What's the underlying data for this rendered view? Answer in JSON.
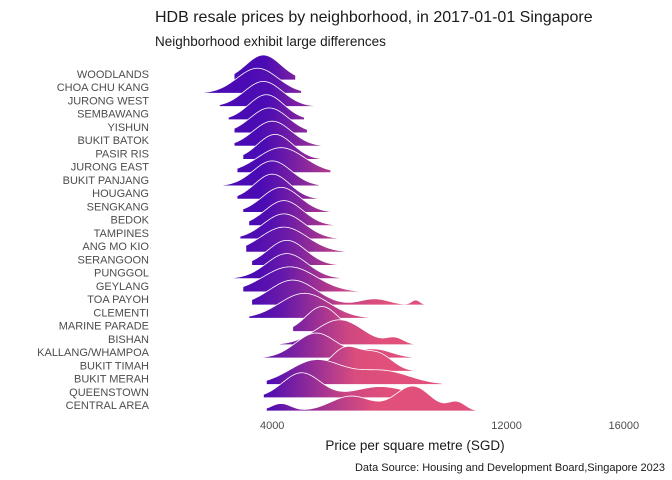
{
  "chart_data": {
    "type": "ridgeline",
    "title": "HDB resale prices by neighborhood, in 2017-01-01 Singapore",
    "subtitle": "Neighborhood exhibit large differences",
    "xlabel": "Price per square metre (SGD)",
    "caption": "Data Source: Housing and Development Board,Singapore 2023",
    "xlim": [
      0,
      16000
    ],
    "xticks": [
      4000,
      12000,
      16000
    ],
    "grid": false,
    "legend": "none",
    "color_scale": {
      "low": "#4b0bb4",
      "high": "#e1507a",
      "domain": [
        3800,
        7000
      ]
    },
    "ridges": [
      {
        "name": "WOODLANDS",
        "min": 2700,
        "max": 4800,
        "peaks": [
          [
            3700,
            600,
            1
          ]
        ]
      },
      {
        "name": "CHOA CHU KANG",
        "min": 1500,
        "max": 5000,
        "peaks": [
          [
            3500,
            700,
            1
          ]
        ]
      },
      {
        "name": "JURONG WEST",
        "min": 2200,
        "max": 5600,
        "peaks": [
          [
            3700,
            650,
            1
          ]
        ]
      },
      {
        "name": "SEMBAWANG",
        "min": 2500,
        "max": 5100,
        "peaks": [
          [
            3800,
            600,
            1
          ]
        ]
      },
      {
        "name": "YISHUN",
        "min": 2700,
        "max": 5200,
        "peaks": [
          [
            3900,
            650,
            1
          ]
        ]
      },
      {
        "name": "BUKIT BATOK",
        "min": 2700,
        "max": 6000,
        "peaks": [
          [
            4000,
            650,
            1
          ]
        ]
      },
      {
        "name": "PASIR RIS",
        "min": 3000,
        "max": 5700,
        "peaks": [
          [
            4100,
            600,
            1
          ]
        ]
      },
      {
        "name": "JURONG EAST",
        "min": 2800,
        "max": 6000,
        "peaks": [
          [
            4300,
            800,
            1
          ]
        ]
      },
      {
        "name": "BUKIT PANJANG",
        "min": 1700,
        "max": 5600,
        "peaks": [
          [
            4000,
            650,
            1
          ]
        ]
      },
      {
        "name": "HOUGANG",
        "min": 2800,
        "max": 5900,
        "peaks": [
          [
            4000,
            600,
            1
          ]
        ]
      },
      {
        "name": "SENGKANG",
        "min": 3000,
        "max": 6100,
        "peaks": [
          [
            4300,
            650,
            1
          ]
        ]
      },
      {
        "name": "BEDOK",
        "min": 3200,
        "max": 6200,
        "peaks": [
          [
            4400,
            650,
            1
          ]
        ]
      },
      {
        "name": "TAMPINES",
        "min": 2900,
        "max": 7200,
        "peaks": [
          [
            4400,
            700,
            1
          ]
        ]
      },
      {
        "name": "ANG MO KIO",
        "min": 3100,
        "max": 8600,
        "peaks": [
          [
            4400,
            800,
            1
          ]
        ]
      },
      {
        "name": "SERANGOON",
        "min": 3300,
        "max": 6500,
        "peaks": [
          [
            4500,
            650,
            1
          ]
        ]
      },
      {
        "name": "PUNGGOL",
        "min": 2400,
        "max": 6800,
        "peaks": [
          [
            4500,
            700,
            1
          ]
        ]
      },
      {
        "name": "GEYLANG",
        "min": 3000,
        "max": 8200,
        "peaks": [
          [
            4600,
            900,
            1
          ]
        ]
      },
      {
        "name": "TOA PAYOH",
        "min": 3300,
        "max": 9500,
        "peaks": [
          [
            4700,
            800,
            1
          ],
          [
            7500,
            500,
            0.25
          ],
          [
            8900,
            150,
            0.2
          ]
        ]
      },
      {
        "name": "CLEMENTI",
        "min": 3200,
        "max": 7600,
        "peaks": [
          [
            5100,
            850,
            1
          ]
        ]
      },
      {
        "name": "MARINE PARADE",
        "min": 4700,
        "max": 7200,
        "peaks": [
          [
            5700,
            550,
            1
          ]
        ]
      },
      {
        "name": "BISHAN",
        "min": 4200,
        "max": 9000,
        "peaks": [
          [
            6300,
            800,
            1
          ],
          [
            8200,
            300,
            0.25
          ]
        ]
      },
      {
        "name": "KALLANG/WHAMPOA",
        "min": 3200,
        "max": 10000,
        "peaks": [
          [
            5500,
            700,
            1
          ],
          [
            7500,
            600,
            0.35
          ]
        ]
      },
      {
        "name": "BUKIT TIMAH",
        "min": 4800,
        "max": 9000,
        "peaks": [
          [
            6500,
            500,
            1
          ],
          [
            7600,
            500,
            0.75
          ]
        ]
      },
      {
        "name": "BUKIT MERAH",
        "min": 3800,
        "max": 9800,
        "peaks": [
          [
            5500,
            900,
            1
          ],
          [
            7800,
            900,
            0.55
          ]
        ]
      },
      {
        "name": "QUEENSTOWN",
        "min": 3700,
        "max": 9300,
        "peaks": [
          [
            5000,
            650,
            1
          ],
          [
            7700,
            900,
            0.45
          ]
        ]
      },
      {
        "name": "CENTRAL AREA",
        "min": 3800,
        "max": 11200,
        "peaks": [
          [
            4300,
            350,
            0.3
          ],
          [
            6700,
            700,
            0.6
          ],
          [
            8800,
            600,
            1
          ],
          [
            10300,
            300,
            0.35
          ]
        ]
      }
    ]
  }
}
